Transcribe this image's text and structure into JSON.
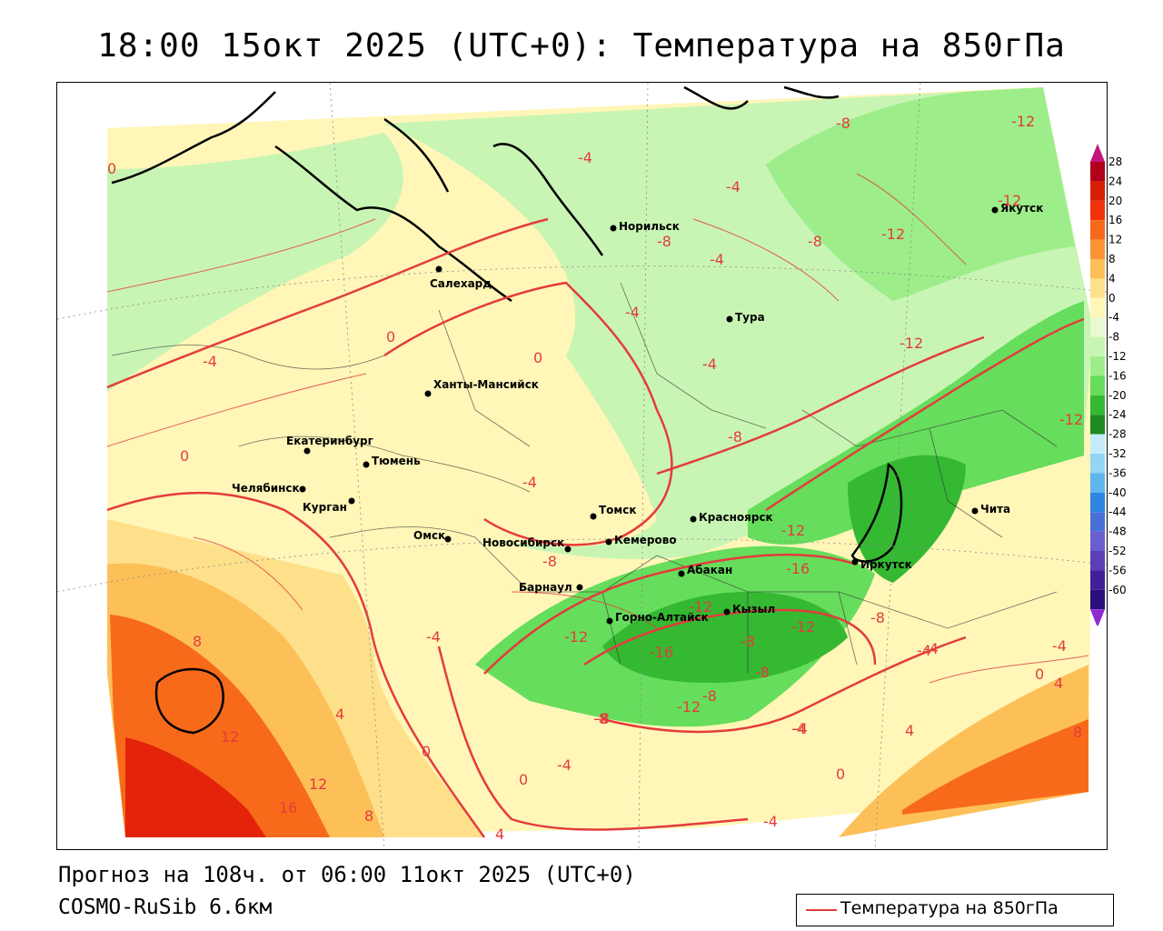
{
  "title": "18:00 15окт 2025 (UTC+0): Температура на 850гПа",
  "footer": {
    "forecast": "Прогноз на 108ч. от 06:00 11окт 2025 (UTC+0)",
    "model": "COSMO-RuSib 6.6км"
  },
  "legend": {
    "label": "Температура на 850гПа",
    "line_color": "#e33c3c"
  },
  "colorbar": {
    "ticks": [
      "28",
      "24",
      "20",
      "16",
      "12",
      "8",
      "4",
      "0",
      "-4",
      "-8",
      "-12",
      "-16",
      "-20",
      "-24",
      "-28",
      "-32",
      "-36",
      "-40",
      "-44",
      "-48",
      "-52",
      "-56",
      "-60"
    ],
    "colors": [
      "#b3001a",
      "#d81e05",
      "#f2320d",
      "#f76a1a",
      "#fb9434",
      "#fdbf58",
      "#fee08b",
      "#fff6b8",
      "#e7fad0",
      "#c8f5b4",
      "#9ded8a",
      "#66dd5c",
      "#35b832",
      "#1f8a22",
      "#c6ecfb",
      "#95d5f4",
      "#5fb6ec",
      "#2d86e0",
      "#4b6fd9",
      "#6b5fd0",
      "#5a3fb8",
      "#3f1f9a",
      "#2a0f7a"
    ],
    "top_arrow_color": "#c0187a",
    "bottom_arrow_color": "#8e2ad4"
  },
  "cities": [
    {
      "name": "Салехард"
    },
    {
      "name": "Норильск"
    },
    {
      "name": "Якутск"
    },
    {
      "name": "Тура"
    },
    {
      "name": "Ханты-Мансийск"
    },
    {
      "name": "Екатеринбург"
    },
    {
      "name": "Тюмень"
    },
    {
      "name": "Челябинск"
    },
    {
      "name": "Курган"
    },
    {
      "name": "Омск"
    },
    {
      "name": "Томск"
    },
    {
      "name": "Красноярск"
    },
    {
      "name": "Новосибирск"
    },
    {
      "name": "Кемерово"
    },
    {
      "name": "Абакан"
    },
    {
      "name": "Барнаул"
    },
    {
      "name": "Горно-Алтайск"
    },
    {
      "name": "Кызыл"
    },
    {
      "name": "Иркутск"
    },
    {
      "name": "Чита"
    }
  ],
  "isotherm_labels": [
    "0",
    "-4",
    "-8",
    "-12",
    "-4",
    "-8",
    "-4",
    "-12",
    "-12",
    "-8",
    "-4",
    "0",
    "-4",
    "0",
    "-4",
    "-4",
    "-8",
    "-12",
    "0",
    "-12",
    "-4",
    "-4",
    "-8",
    "-12",
    "-8",
    "-16",
    "-12",
    "-12",
    "-8",
    "-16",
    "-8",
    "-12",
    "-8",
    "-12",
    "-8",
    "-4",
    "-4",
    "-4",
    "0",
    "4",
    "8",
    "12",
    "12",
    "16",
    "8",
    "4",
    "0",
    "-4",
    "0",
    "-4",
    "-8",
    "-4",
    "0",
    "4",
    "4",
    "8"
  ]
}
